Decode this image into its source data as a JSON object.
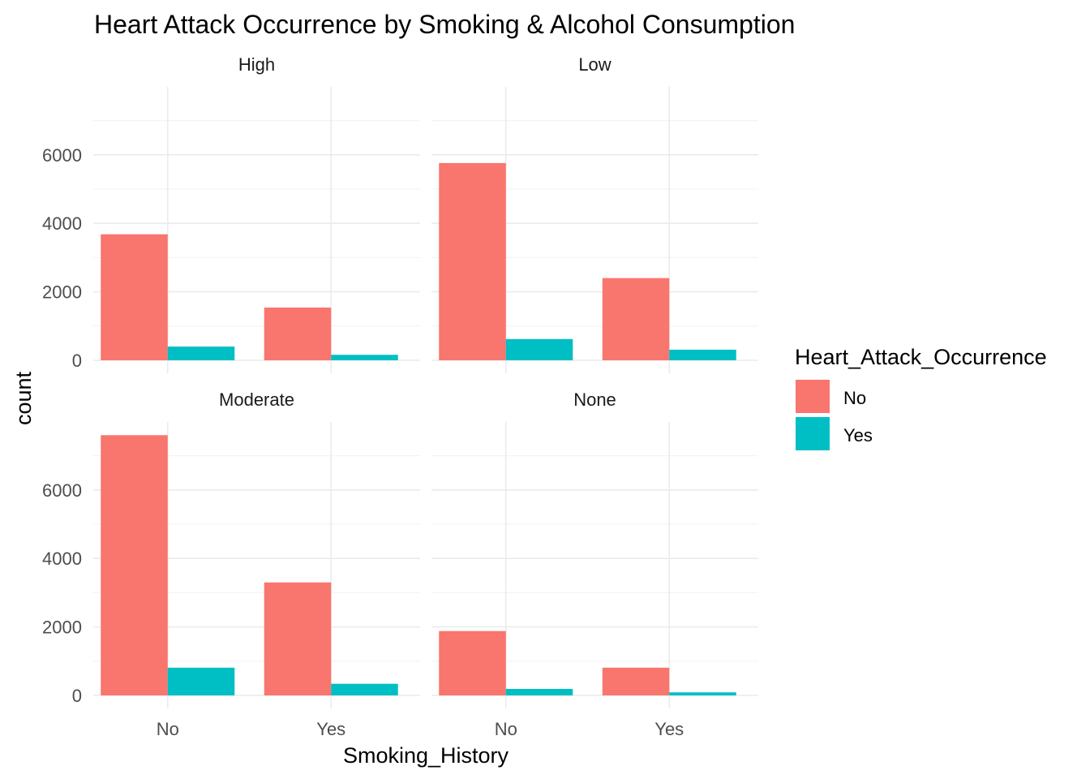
{
  "chart_data": {
    "type": "bar",
    "title": "Heart Attack Occurrence by Smoking & Alcohol Consumption",
    "xlabel": "Smoking_History",
    "ylabel": "count",
    "categories": [
      "No",
      "Yes"
    ],
    "yticks": [
      "0",
      "2000",
      "4000",
      "6000"
    ],
    "ylim": [
      0,
      7600
    ],
    "grid": true,
    "legend": {
      "title": "Heart_Attack_Occurrence",
      "placement": "right",
      "entries": [
        {
          "name": "No",
          "color": "#F8766D"
        },
        {
          "name": "Yes",
          "color": "#00BFC4"
        }
      ]
    },
    "panels": [
      {
        "label": "High",
        "series": [
          {
            "name": "No",
            "values": [
              3680,
              1540
            ]
          },
          {
            "name": "Yes",
            "values": [
              400,
              160
            ]
          }
        ]
      },
      {
        "label": "Low",
        "series": [
          {
            "name": "No",
            "values": [
              5760,
              2400
            ]
          },
          {
            "name": "Yes",
            "values": [
              620,
              310
            ]
          }
        ]
      },
      {
        "label": "Moderate",
        "series": [
          {
            "name": "No",
            "values": [
              7600,
              3300
            ]
          },
          {
            "name": "Yes",
            "values": [
              810,
              340
            ]
          }
        ]
      },
      {
        "label": "None",
        "series": [
          {
            "name": "No",
            "values": [
              1880,
              810
            ]
          },
          {
            "name": "Yes",
            "values": [
              190,
              90
            ]
          }
        ]
      }
    ]
  }
}
